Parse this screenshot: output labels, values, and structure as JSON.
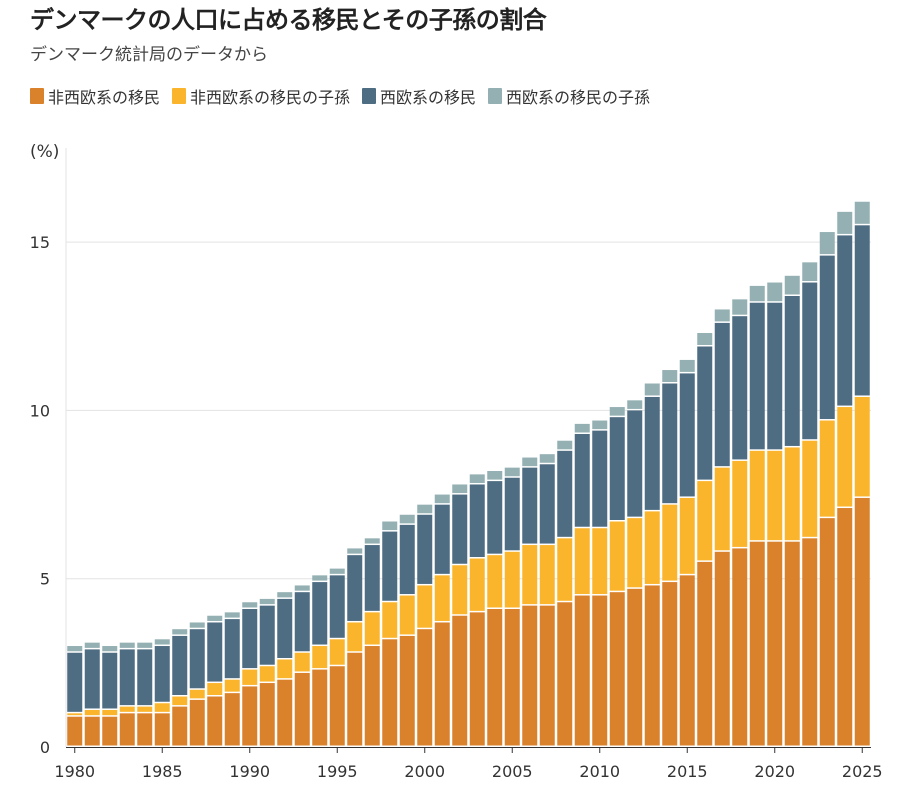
{
  "header": {
    "title": "デンマークの人口に占める移民とその子孫の割合",
    "subtitle": "デンマーク統計局のデータから"
  },
  "unit_label": "(%)",
  "chart_data": {
    "type": "bar",
    "stacked": true,
    "title": "デンマークの人口に占める移民とその子孫の割合",
    "subtitle": "デンマーク統計局のデータから",
    "ylabel": "(%)",
    "ylim": [
      0,
      17.5
    ],
    "y_ticks": [
      0,
      5,
      10,
      15
    ],
    "x_ticks": [
      1980,
      1985,
      1990,
      1995,
      2000,
      2005,
      2010,
      2015,
      2020,
      2025
    ],
    "grid": "horizontal",
    "legend_position": "top-left",
    "categories": [
      1980,
      1981,
      1982,
      1983,
      1984,
      1985,
      1986,
      1987,
      1988,
      1989,
      1990,
      1991,
      1992,
      1993,
      1994,
      1995,
      1996,
      1997,
      1998,
      1999,
      2000,
      2001,
      2002,
      2003,
      2004,
      2005,
      2006,
      2007,
      2008,
      2009,
      2010,
      2011,
      2012,
      2013,
      2014,
      2015,
      2016,
      2017,
      2018,
      2019,
      2020,
      2021,
      2022,
      2023,
      2024,
      2025
    ],
    "series": [
      {
        "name": "非西欧系の移民",
        "color": "#D9822B",
        "values": [
          0.9,
          0.9,
          0.9,
          1.0,
          1.0,
          1.0,
          1.2,
          1.4,
          1.5,
          1.6,
          1.8,
          1.9,
          2.0,
          2.2,
          2.3,
          2.4,
          2.8,
          3.0,
          3.2,
          3.3,
          3.5,
          3.7,
          3.9,
          4.0,
          4.1,
          4.1,
          4.2,
          4.2,
          4.3,
          4.5,
          4.5,
          4.6,
          4.7,
          4.8,
          4.9,
          5.1,
          5.5,
          5.8,
          5.9,
          6.1,
          6.1,
          6.1,
          6.2,
          6.8,
          7.1,
          7.4
        ]
      },
      {
        "name": "非西欧系の移民の子孫",
        "color": "#FBB52C",
        "values": [
          0.1,
          0.2,
          0.2,
          0.2,
          0.2,
          0.3,
          0.3,
          0.3,
          0.4,
          0.4,
          0.5,
          0.5,
          0.6,
          0.6,
          0.7,
          0.8,
          0.9,
          1.0,
          1.1,
          1.2,
          1.3,
          1.4,
          1.5,
          1.6,
          1.6,
          1.7,
          1.8,
          1.8,
          1.9,
          2.0,
          2.0,
          2.1,
          2.1,
          2.2,
          2.3,
          2.3,
          2.4,
          2.5,
          2.6,
          2.7,
          2.7,
          2.8,
          2.9,
          2.9,
          3.0,
          3.0
        ]
      },
      {
        "name": "西欧系の移民",
        "color": "#4F6D82",
        "values": [
          1.8,
          1.8,
          1.7,
          1.7,
          1.7,
          1.7,
          1.8,
          1.8,
          1.8,
          1.8,
          1.8,
          1.8,
          1.8,
          1.8,
          1.9,
          1.9,
          2.0,
          2.0,
          2.1,
          2.1,
          2.1,
          2.1,
          2.1,
          2.2,
          2.2,
          2.2,
          2.3,
          2.4,
          2.6,
          2.8,
          2.9,
          3.1,
          3.2,
          3.4,
          3.6,
          3.7,
          4.0,
          4.3,
          4.3,
          4.4,
          4.4,
          4.5,
          4.7,
          4.9,
          5.1,
          5.1
        ]
      },
      {
        "name": "西欧系の移民の子孫",
        "color": "#94B0B3",
        "values": [
          0.2,
          0.2,
          0.2,
          0.2,
          0.2,
          0.2,
          0.2,
          0.2,
          0.2,
          0.2,
          0.2,
          0.2,
          0.2,
          0.2,
          0.2,
          0.2,
          0.2,
          0.2,
          0.3,
          0.3,
          0.3,
          0.3,
          0.3,
          0.3,
          0.3,
          0.3,
          0.3,
          0.3,
          0.3,
          0.3,
          0.3,
          0.3,
          0.3,
          0.4,
          0.4,
          0.4,
          0.4,
          0.4,
          0.5,
          0.5,
          0.6,
          0.6,
          0.6,
          0.7,
          0.7,
          0.7
        ]
      }
    ]
  }
}
